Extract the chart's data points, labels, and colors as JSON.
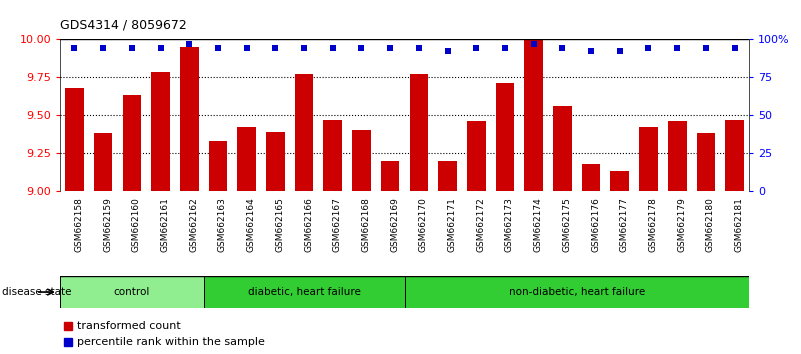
{
  "title": "GDS4314 / 8059672",
  "samples": [
    "GSM662158",
    "GSM662159",
    "GSM662160",
    "GSM662161",
    "GSM662162",
    "GSM662163",
    "GSM662164",
    "GSM662165",
    "GSM662166",
    "GSM662167",
    "GSM662168",
    "GSM662169",
    "GSM662170",
    "GSM662171",
    "GSM662172",
    "GSM662173",
    "GSM662174",
    "GSM662175",
    "GSM662176",
    "GSM662177",
    "GSM662178",
    "GSM662179",
    "GSM662180",
    "GSM662181"
  ],
  "bar_values": [
    9.68,
    9.38,
    9.63,
    9.78,
    9.95,
    9.33,
    9.42,
    9.39,
    9.77,
    9.47,
    9.4,
    9.2,
    9.77,
    9.2,
    9.46,
    9.71,
    9.99,
    9.56,
    9.18,
    9.13,
    9.42,
    9.46,
    9.38,
    9.47
  ],
  "percentile_values": [
    9.94,
    9.94,
    9.94,
    9.94,
    9.97,
    9.94,
    9.94,
    9.94,
    9.94,
    9.94,
    9.94,
    9.94,
    9.94,
    9.92,
    9.94,
    9.94,
    9.97,
    9.94,
    9.92,
    9.92,
    9.94,
    9.94,
    9.94,
    9.94
  ],
  "bar_color": "#cc0000",
  "percentile_color": "#0000cc",
  "ylim": [
    9.0,
    10.0
  ],
  "yticks_left": [
    9.0,
    9.25,
    9.5,
    9.75,
    10.0
  ],
  "yticks_right_vals": [
    0,
    25,
    50,
    75,
    100
  ],
  "yticks_right_labels": [
    "0",
    "25",
    "50",
    "75",
    "100%"
  ],
  "group_defs": [
    {
      "start": 0,
      "end": 4,
      "color": "#90ee90",
      "label": "control"
    },
    {
      "start": 5,
      "end": 11,
      "color": "#32cd32",
      "label": "diabetic, heart failure"
    },
    {
      "start": 12,
      "end": 23,
      "color": "#32cd32",
      "label": "non-diabetic, heart failure"
    }
  ],
  "disease_state_label": "disease state",
  "legend_bar_label": "transformed count",
  "legend_dot_label": "percentile rank within the sample",
  "background_color": "#ffffff",
  "grid_color": "#000000",
  "tick_area_bg": "#d3d3d3"
}
